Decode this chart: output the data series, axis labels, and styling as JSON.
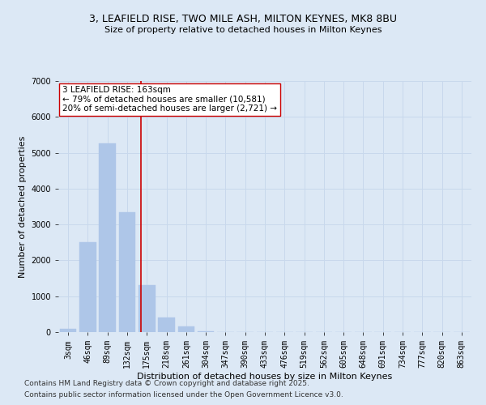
{
  "title_line1": "3, LEAFIELD RISE, TWO MILE ASH, MILTON KEYNES, MK8 8BU",
  "title_line2": "Size of property relative to detached houses in Milton Keynes",
  "xlabel": "Distribution of detached houses by size in Milton Keynes",
  "ylabel": "Number of detached properties",
  "categories": [
    "3sqm",
    "46sqm",
    "89sqm",
    "132sqm",
    "175sqm",
    "218sqm",
    "261sqm",
    "304sqm",
    "347sqm",
    "390sqm",
    "433sqm",
    "476sqm",
    "519sqm",
    "562sqm",
    "605sqm",
    "648sqm",
    "691sqm",
    "734sqm",
    "777sqm",
    "820sqm",
    "863sqm"
  ],
  "values": [
    100,
    2500,
    5250,
    3350,
    1300,
    400,
    150,
    30,
    0,
    0,
    0,
    0,
    0,
    0,
    0,
    0,
    0,
    0,
    0,
    0,
    0
  ],
  "bar_color": "#aec6e8",
  "bar_edgecolor": "#aec6e8",
  "vline_pos": 3.72,
  "vline_color": "#cc0000",
  "annotation_text": "3 LEAFIELD RISE: 163sqm\n← 79% of detached houses are smaller (10,581)\n20% of semi-detached houses are larger (2,721) →",
  "annotation_box_facecolor": "#ffffff",
  "annotation_box_edgecolor": "#cc0000",
  "ylim": [
    0,
    7000
  ],
  "yticks": [
    0,
    1000,
    2000,
    3000,
    4000,
    5000,
    6000,
    7000
  ],
  "grid_color": "#c8d8ec",
  "background_color": "#dce8f5",
  "footer_line1": "Contains HM Land Registry data © Crown copyright and database right 2025.",
  "footer_line2": "Contains public sector information licensed under the Open Government Licence v3.0.",
  "title_fontsize": 9,
  "subtitle_fontsize": 8,
  "axis_label_fontsize": 8,
  "tick_fontsize": 7,
  "annotation_fontsize": 7.5,
  "footer_fontsize": 6.5
}
